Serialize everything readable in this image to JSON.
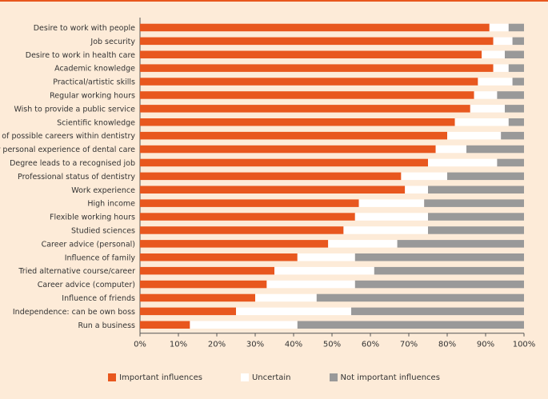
{
  "chart_data": {
    "type": "bar",
    "orientation": "horizontal",
    "stacked": true,
    "categories": [
      "Desire to work with people",
      "Job security",
      "Desire to work in health care",
      "Academic knowledge",
      "Practical/artistic skills",
      "Regular working hours",
      "Wish to provide a public service",
      "Scientific knowledge",
      "Range of possible careers within dentistry",
      "Your personal experience of dental care",
      "Degree leads to a recognised job",
      "Professional status of dentistry",
      "Work experience",
      "High income",
      "Flexible working hours",
      "Studied sciences",
      "Career advice (personal)",
      "Influence of family",
      "Tried alternative course/career",
      "Career advice (computer)",
      "Influence of friends",
      "Independence: can be own boss",
      "Run a business"
    ],
    "series": [
      {
        "name": "Important influences",
        "color": "#e8571e",
        "values": [
          91,
          92,
          89,
          92,
          88,
          87,
          86,
          82,
          80,
          77,
          75,
          68,
          69,
          57,
          56,
          53,
          49,
          41,
          35,
          33,
          30,
          25,
          13
        ]
      },
      {
        "name": "Uncertain",
        "color": "#ffffff",
        "values": [
          5,
          5,
          6,
          4,
          9,
          6,
          9,
          14,
          14,
          8,
          18,
          12,
          6,
          17,
          19,
          22,
          18,
          15,
          26,
          23,
          16,
          30,
          28
        ]
      },
      {
        "name": "Not important influences",
        "color": "#999999",
        "values": [
          4,
          3,
          5,
          4,
          3,
          7,
          5,
          4,
          6,
          15,
          7,
          20,
          25,
          26,
          25,
          25,
          33,
          44,
          39,
          44,
          54,
          45,
          59
        ]
      }
    ],
    "x_ticks": [
      "0%",
      "10%",
      "20%",
      "30%",
      "40%",
      "50%",
      "60%",
      "70%",
      "80%",
      "90%",
      "100%"
    ],
    "xlim": [
      0,
      100
    ],
    "legend_position": "bottom",
    "title": "",
    "xlabel": "",
    "ylabel": ""
  },
  "legend": {
    "important": "Important influences",
    "uncertain": "Uncertain",
    "not_important": "Not important influences"
  },
  "colors": {
    "important": "#e8571e",
    "uncertain": "#ffffff",
    "not_important": "#999999",
    "background": "#fdebd8"
  }
}
